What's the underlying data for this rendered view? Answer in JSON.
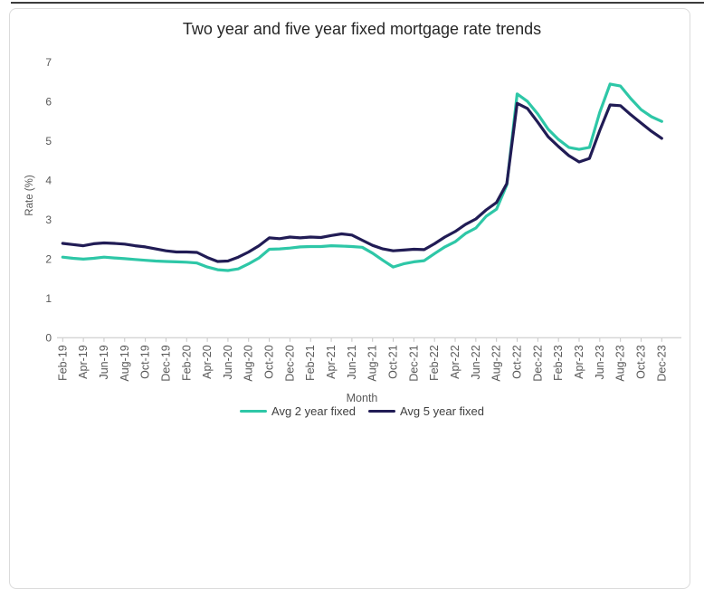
{
  "chart_data": {
    "type": "line",
    "title": "Two year and five year fixed mortgage rate trends",
    "xlabel": "Month",
    "ylabel": "Rate (%)",
    "ylim": [
      0,
      7
    ],
    "y_ticks": [
      0,
      1,
      2,
      3,
      4,
      5,
      6,
      7
    ],
    "x_tick_step": 2,
    "grid": false,
    "legend_position": "bottom",
    "categories": [
      "Feb-19",
      "Mar-19",
      "Apr-19",
      "May-19",
      "Jun-19",
      "Jul-19",
      "Aug-19",
      "Sep-19",
      "Oct-19",
      "Nov-19",
      "Dec-19",
      "Jan-20",
      "Feb-20",
      "Mar-20",
      "Apr-20",
      "May-20",
      "Jun-20",
      "Jul-20",
      "Aug-20",
      "Sep-20",
      "Oct-20",
      "Nov-20",
      "Dec-20",
      "Jan-21",
      "Feb-21",
      "Mar-21",
      "Apr-21",
      "May-21",
      "Jun-21",
      "Jul-21",
      "Aug-21",
      "Sep-21",
      "Oct-21",
      "Nov-21",
      "Dec-21",
      "Jan-22",
      "Feb-22",
      "Mar-22",
      "Apr-22",
      "May-22",
      "Jun-22",
      "Jul-22",
      "Aug-22",
      "Sep-22",
      "Oct-22",
      "Nov-22",
      "Dec-22",
      "Jan-23",
      "Feb-23",
      "Mar-23",
      "Apr-23",
      "May-23",
      "Jun-23",
      "Jul-23",
      "Aug-23",
      "Sep-23",
      "Oct-23",
      "Nov-23",
      "Dec-23"
    ],
    "series": [
      {
        "name": "Avg 2 year fixed",
        "color": "#2ec7a7",
        "values": [
          2.05,
          2.02,
          2.0,
          2.02,
          2.05,
          2.03,
          2.01,
          1.99,
          1.97,
          1.95,
          1.94,
          1.93,
          1.92,
          1.9,
          1.8,
          1.73,
          1.71,
          1.75,
          1.88,
          2.03,
          2.25,
          2.26,
          2.28,
          2.31,
          2.32,
          2.32,
          2.34,
          2.33,
          2.32,
          2.3,
          2.15,
          1.97,
          1.8,
          1.88,
          1.93,
          1.96,
          2.14,
          2.31,
          2.44,
          2.65,
          2.79,
          3.09,
          3.27,
          3.89,
          6.2,
          6.01,
          5.69,
          5.3,
          5.04,
          4.84,
          4.79,
          4.84,
          5.73,
          6.45,
          6.4,
          6.08,
          5.8,
          5.62,
          5.5
        ]
      },
      {
        "name": "Avg 5 year fixed",
        "color": "#211c55",
        "values": [
          2.4,
          2.37,
          2.34,
          2.39,
          2.41,
          2.4,
          2.38,
          2.34,
          2.31,
          2.26,
          2.21,
          2.18,
          2.18,
          2.17,
          2.04,
          1.94,
          1.95,
          2.05,
          2.18,
          2.34,
          2.54,
          2.52,
          2.56,
          2.54,
          2.56,
          2.55,
          2.6,
          2.64,
          2.61,
          2.48,
          2.35,
          2.26,
          2.21,
          2.23,
          2.25,
          2.24,
          2.39,
          2.56,
          2.7,
          2.88,
          3.02,
          3.25,
          3.44,
          3.92,
          5.96,
          5.83,
          5.48,
          5.11,
          4.86,
          4.63,
          4.47,
          4.56,
          5.27,
          5.92,
          5.9,
          5.67,
          5.46,
          5.25,
          5.07
        ]
      }
    ]
  }
}
